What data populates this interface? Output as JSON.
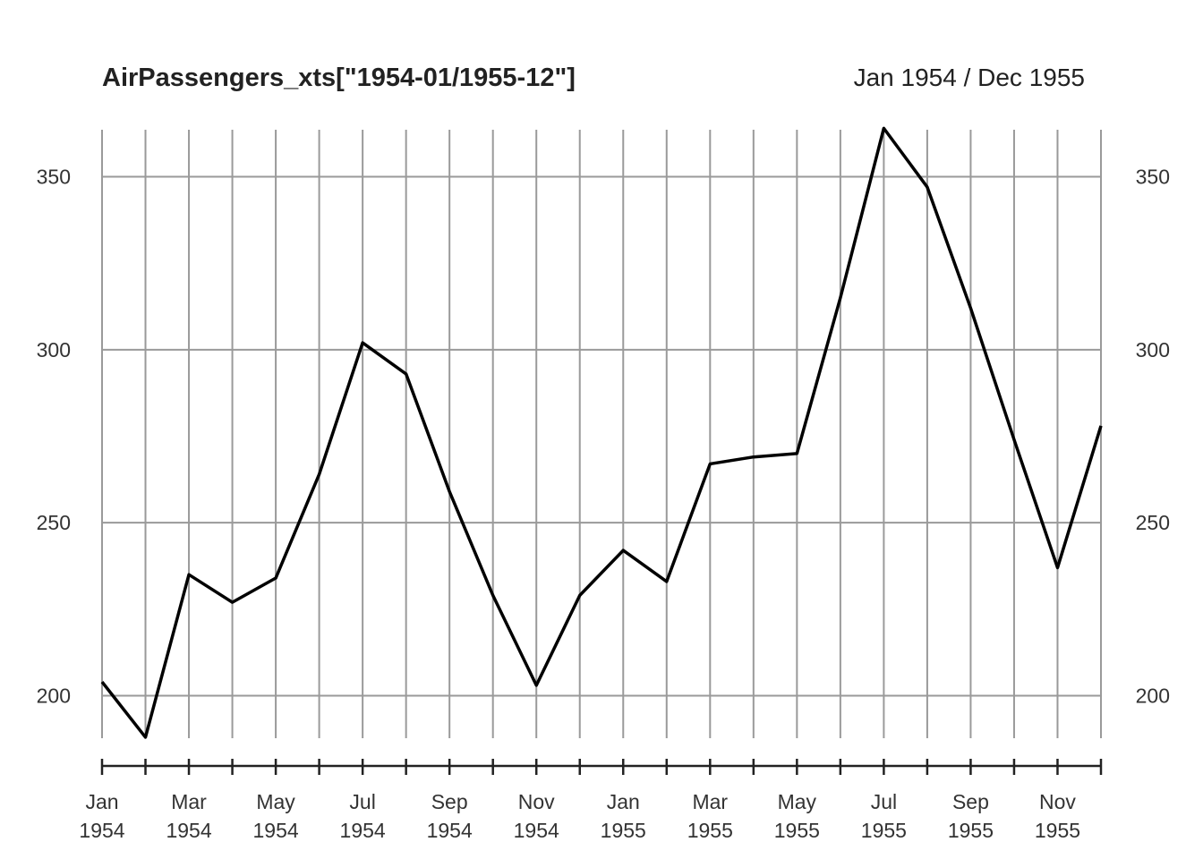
{
  "chart_data": {
    "type": "line",
    "title": "AirPassengers_xts[\"1954-01/1955-12\"]",
    "date_range_label": "Jan 1954 / Dec 1955",
    "x": [
      "Jan 1954",
      "Feb 1954",
      "Mar 1954",
      "Apr 1954",
      "May 1954",
      "Jun 1954",
      "Jul 1954",
      "Aug 1954",
      "Sep 1954",
      "Oct 1954",
      "Nov 1954",
      "Dec 1954",
      "Jan 1955",
      "Feb 1955",
      "Mar 1955",
      "Apr 1955",
      "May 1955",
      "Jun 1955",
      "Jul 1955",
      "Aug 1955",
      "Sep 1955",
      "Oct 1955",
      "Nov 1955",
      "Dec 1955"
    ],
    "series": [
      {
        "values": [
          204,
          188,
          235,
          227,
          234,
          264,
          302,
          293,
          259,
          229,
          203,
          229,
          242,
          233,
          267,
          269,
          270,
          315,
          364,
          347,
          312,
          274,
          237,
          278
        ]
      }
    ],
    "ylim": [
      180,
      364
    ],
    "y_ticks": [
      "200",
      "250",
      "300",
      "350"
    ],
    "x_tick_labels": [
      {
        "index": 0,
        "month": "Jan",
        "year": "1954"
      },
      {
        "index": 2,
        "month": "Mar",
        "year": "1954"
      },
      {
        "index": 4,
        "month": "May",
        "year": "1954"
      },
      {
        "index": 6,
        "month": "Jul",
        "year": "1954"
      },
      {
        "index": 8,
        "month": "Sep",
        "year": "1954"
      },
      {
        "index": 10,
        "month": "Nov",
        "year": "1954"
      },
      {
        "index": 12,
        "month": "Jan",
        "year": "1955"
      },
      {
        "index": 14,
        "month": "Mar",
        "year": "1955"
      },
      {
        "index": 16,
        "month": "May",
        "year": "1955"
      },
      {
        "index": 18,
        "month": "Jul",
        "year": "1955"
      },
      {
        "index": 20,
        "month": "Sep",
        "year": "1955"
      },
      {
        "index": 22,
        "month": "Nov",
        "year": "1955"
      }
    ],
    "grid": true,
    "line_color": "#000000",
    "grid_color": "#9a9a9a"
  }
}
